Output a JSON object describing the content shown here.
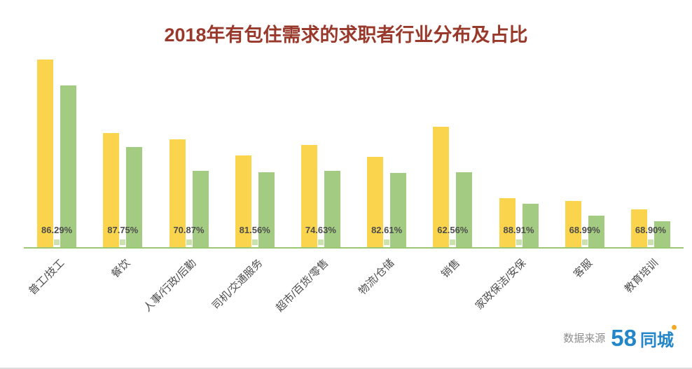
{
  "title": "2018年有包住需求的求职者行业分布及占比",
  "footer": {
    "source_label": "数据来源",
    "logo_58": "58",
    "logo_city": "同城"
  },
  "colors": {
    "title": "#99392B",
    "yellow": "#F9D44C",
    "green": "#A3CC82",
    "axis": "#9CC873",
    "tick": "#CBE2AE",
    "label": "#4D4D4D",
    "source": "#8C8C8C",
    "logo_blue": "#2286C9",
    "logo_orange": "#F7A823"
  },
  "chart_data": {
    "type": "bar",
    "title": "2018年有包住需求的求职者行业分布及占比",
    "categories": [
      "普工/技工",
      "餐饮",
      "人事/行政/后勤",
      "司机/交通服务",
      "超市/百货/零售",
      "物流/仓储",
      "销售",
      "家政保洁/安保",
      "客服",
      "教育培训"
    ],
    "series": [
      {
        "name": "yellow",
        "values": [
          100,
          61,
          57.5,
          49,
          54.5,
          48,
          64,
          26,
          24.5,
          20
        ]
      },
      {
        "name": "green",
        "values": [
          86.3,
          53.5,
          40.8,
          40.0,
          40.7,
          39.7,
          40.0,
          23.1,
          16.9,
          13.8
        ]
      }
    ],
    "percent_labels": [
      "86.29%",
      "87.75%",
      "70.87%",
      "81.56%",
      "74.63%",
      "82.61%",
      "62.56%",
      "88.91%",
      "68.99%",
      "68.90%"
    ],
    "ylim": [
      0,
      100
    ],
    "grid": false,
    "legend": false,
    "x_tick_rotation": -45
  }
}
